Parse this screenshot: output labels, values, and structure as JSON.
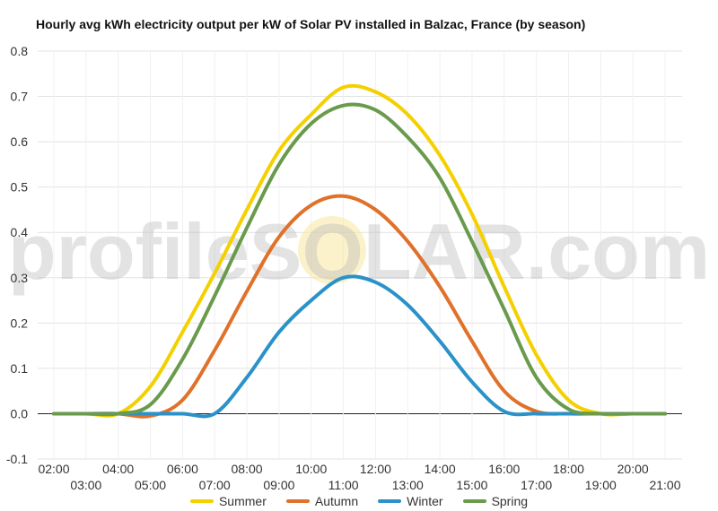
{
  "chart_data": {
    "type": "line",
    "title": "Hourly avg kWh electricity output per kW of Solar PV installed in Balzac, France (by season)",
    "xlabel": "",
    "ylabel": "",
    "ylim": [
      -0.1,
      0.8
    ],
    "yticks": [
      "0.8",
      "0.7",
      "0.6",
      "0.5",
      "0.4",
      "0.3",
      "0.2",
      "0.1",
      "0.0",
      "-0.1"
    ],
    "ytick_values": [
      0.8,
      0.7,
      0.6,
      0.5,
      0.4,
      0.3,
      0.2,
      0.1,
      0.0,
      -0.1
    ],
    "x": [
      "02:00",
      "03:00",
      "04:00",
      "05:00",
      "06:00",
      "07:00",
      "08:00",
      "09:00",
      "10:00",
      "11:00",
      "12:00",
      "13:00",
      "14:00",
      "15:00",
      "16:00",
      "17:00",
      "18:00",
      "19:00",
      "20:00",
      "21:00"
    ],
    "grid": true,
    "legend_position": "bottom",
    "series": [
      {
        "name": "Summer",
        "color": "#f5d000",
        "values": [
          0,
          0,
          0,
          0.06,
          0.18,
          0.31,
          0.45,
          0.58,
          0.66,
          0.72,
          0.71,
          0.66,
          0.57,
          0.44,
          0.28,
          0.13,
          0.03,
          0,
          0,
          0
        ]
      },
      {
        "name": "Autumn",
        "color": "#e0712a",
        "values": [
          0,
          0,
          0,
          -0.005,
          0.03,
          0.14,
          0.27,
          0.39,
          0.46,
          0.48,
          0.45,
          0.38,
          0.28,
          0.16,
          0.05,
          0.005,
          0,
          0,
          0,
          0
        ]
      },
      {
        "name": "Winter",
        "color": "#2a92c8",
        "values": [
          0,
          0,
          0,
          0,
          0,
          0,
          0.08,
          0.18,
          0.25,
          0.3,
          0.29,
          0.24,
          0.16,
          0.07,
          0.005,
          0,
          0,
          0,
          0,
          0
        ]
      },
      {
        "name": "Spring",
        "color": "#6a9a4c",
        "values": [
          0,
          0,
          0,
          0.02,
          0.12,
          0.26,
          0.41,
          0.55,
          0.64,
          0.68,
          0.67,
          0.61,
          0.52,
          0.38,
          0.23,
          0.08,
          0.01,
          0,
          0,
          0
        ]
      }
    ],
    "watermark": "profileSOLAR.com"
  }
}
